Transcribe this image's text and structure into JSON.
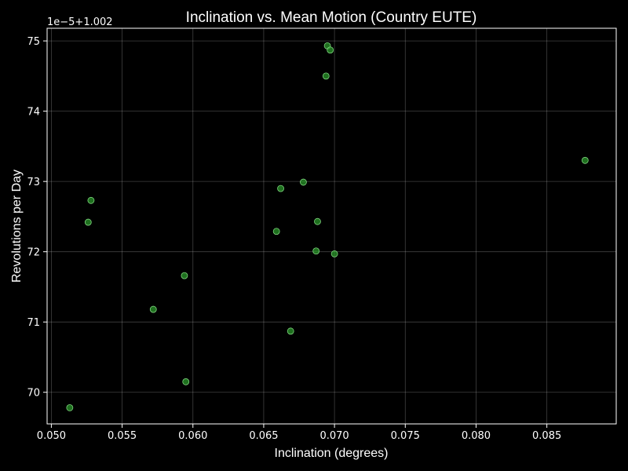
{
  "chart_data": {
    "type": "scatter",
    "title": "Inclination vs. Mean Motion (Country EUTE)",
    "xlabel": "Inclination (degrees)",
    "ylabel": "Revolutions per Day",
    "y_offset_label": "1e−5+1.002",
    "xlim": [
      0.0497,
      0.0899
    ],
    "ylim": [
      69.55,
      75.18
    ],
    "x_ticks": [
      0.05,
      0.055,
      0.06,
      0.065,
      0.07,
      0.075,
      0.08,
      0.085
    ],
    "x_tick_labels": [
      "0.050",
      "0.055",
      "0.060",
      "0.065",
      "0.070",
      "0.075",
      "0.080",
      "0.085"
    ],
    "y_ticks": [
      70,
      71,
      72,
      73,
      74,
      75
    ],
    "y_tick_labels": [
      "70",
      "71",
      "72",
      "73",
      "74",
      "75"
    ],
    "grid": true,
    "colors": {
      "point_fill": "#2ca02c",
      "point_edge": "#7fd67f",
      "background": "#000000",
      "foreground": "#ffffff"
    },
    "points": [
      {
        "x": 0.0513,
        "y": 69.78
      },
      {
        "x": 0.0526,
        "y": 72.42
      },
      {
        "x": 0.0528,
        "y": 72.73
      },
      {
        "x": 0.0572,
        "y": 71.18
      },
      {
        "x": 0.0594,
        "y": 71.66
      },
      {
        "x": 0.0595,
        "y": 70.15
      },
      {
        "x": 0.0659,
        "y": 72.29
      },
      {
        "x": 0.0662,
        "y": 72.9
      },
      {
        "x": 0.0669,
        "y": 70.87
      },
      {
        "x": 0.0678,
        "y": 72.99
      },
      {
        "x": 0.0687,
        "y": 72.01
      },
      {
        "x": 0.0688,
        "y": 72.43
      },
      {
        "x": 0.0694,
        "y": 74.5
      },
      {
        "x": 0.0695,
        "y": 74.93
      },
      {
        "x": 0.0697,
        "y": 74.87
      },
      {
        "x": 0.07,
        "y": 71.97
      },
      {
        "x": 0.0877,
        "y": 73.3
      }
    ]
  }
}
